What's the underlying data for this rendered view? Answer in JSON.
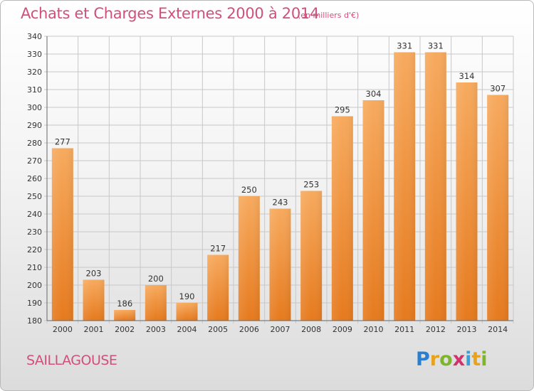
{
  "title": "Achats et Charges Externes 2000 à 2014",
  "subtitle": "(en milliers d'€)",
  "commune": "SAILLAGOUSE",
  "logo": {
    "letters": [
      "P",
      "r",
      "o",
      "x",
      "i",
      "t",
      "i"
    ]
  },
  "colors": {
    "bar_light": "#f7a85a",
    "bar_dark": "#e77b1f",
    "title": "#d0507a"
  },
  "chart_data": {
    "type": "bar",
    "title": "Achats et Charges Externes 2000 à 2014",
    "subtitle": "(en milliers d'€)",
    "categories": [
      "2000",
      "2001",
      "2002",
      "2003",
      "2004",
      "2005",
      "2006",
      "2007",
      "2008",
      "2009",
      "2010",
      "2011",
      "2012",
      "2013",
      "2014"
    ],
    "values": [
      277,
      203,
      186,
      200,
      190,
      217,
      250,
      243,
      253,
      295,
      304,
      331,
      331,
      314,
      307
    ],
    "ylim": [
      180,
      340
    ],
    "yticks": [
      180,
      190,
      200,
      210,
      220,
      230,
      240,
      250,
      260,
      270,
      280,
      290,
      300,
      310,
      320,
      330,
      340
    ],
    "grid": true,
    "xlabel": "",
    "ylabel": ""
  }
}
